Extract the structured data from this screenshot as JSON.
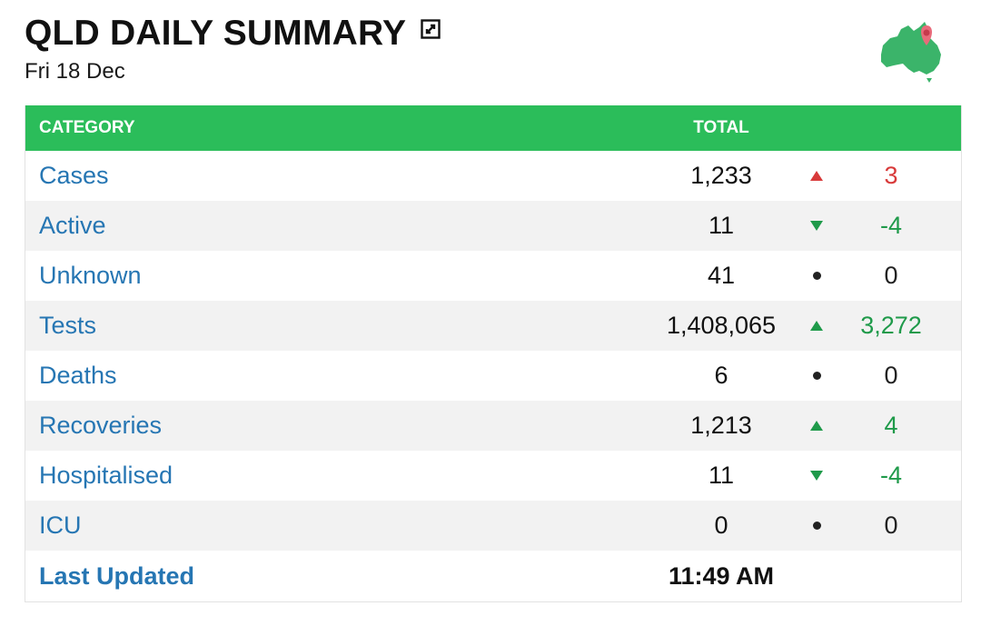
{
  "header": {
    "title": "QLD DAILY SUMMARY",
    "date": "Fri 18 Dec"
  },
  "colors": {
    "header_green": "#2bbd5a",
    "link_blue": "#2676b3",
    "up_red": "#d83a3a",
    "positive_green": "#1f9a4a",
    "neutral": "#222222"
  },
  "table": {
    "headers": {
      "category": "CATEGORY",
      "total": "TOTAL"
    },
    "rows": [
      {
        "category": "Cases",
        "total": "1,233",
        "trend": "up",
        "change": "3",
        "change_color": "#d83a3a"
      },
      {
        "category": "Active",
        "total": "11",
        "trend": "down",
        "change": "-4",
        "change_color": "#1f9a4a"
      },
      {
        "category": "Unknown",
        "total": "41",
        "trend": "neutral",
        "change": "0",
        "change_color": "#222222"
      },
      {
        "category": "Tests",
        "total": "1,408,065",
        "trend": "up",
        "change": "3,272",
        "change_color": "#1f9a4a"
      },
      {
        "category": "Deaths",
        "total": "6",
        "trend": "neutral",
        "change": "0",
        "change_color": "#222222"
      },
      {
        "category": "Recoveries",
        "total": "1,213",
        "trend": "up",
        "change": "4",
        "change_color": "#1f9a4a"
      },
      {
        "category": "Hospitalised",
        "total": "11",
        "trend": "down",
        "change": "-4",
        "change_color": "#1f9a4a"
      },
      {
        "category": "ICU",
        "total": "0",
        "trend": "neutral",
        "change": "0",
        "change_color": "#222222"
      }
    ],
    "last_updated": {
      "label": "Last Updated",
      "value": "11:49 AM"
    }
  },
  "icons": {
    "expand": "expand-icon",
    "map": "australia-map-icon"
  }
}
